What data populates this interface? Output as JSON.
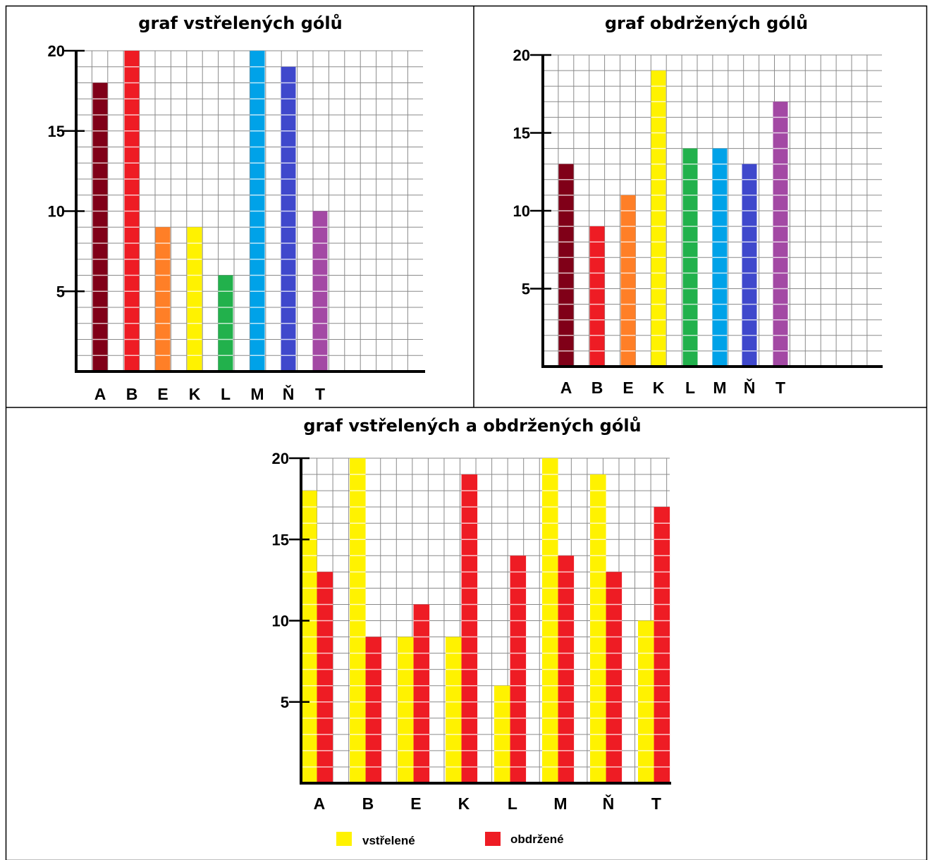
{
  "chart_data": [
    {
      "type": "bar",
      "title": "graf vstřelených gólů",
      "categories": [
        "A",
        "B",
        "E",
        "K",
        "L",
        "M",
        "Ň",
        "T"
      ],
      "values": [
        18,
        20,
        9,
        9,
        6,
        20,
        19,
        10
      ],
      "bar_colors": [
        "#800018",
        "#ee1c24",
        "#ff7f27",
        "#fff200",
        "#22b14c",
        "#00a2e8",
        "#3f48cc",
        "#a349a4"
      ],
      "yticks": [
        5,
        10,
        15,
        20
      ],
      "ylim": [
        0,
        20
      ],
      "grid": true
    },
    {
      "type": "bar",
      "title": "graf obdržených gólů",
      "categories": [
        "A",
        "B",
        "E",
        "K",
        "L",
        "M",
        "Ň",
        "T"
      ],
      "values": [
        13,
        9,
        11,
        19,
        14,
        14,
        13,
        17
      ],
      "bar_colors": [
        "#800018",
        "#ee1c24",
        "#ff7f27",
        "#fff200",
        "#22b14c",
        "#00a2e8",
        "#3f48cc",
        "#a349a4"
      ],
      "yticks": [
        5,
        10,
        15,
        20
      ],
      "ylim": [
        0,
        20
      ],
      "grid": true
    },
    {
      "type": "bar",
      "title": "graf vstřelených a obdržených gólů",
      "categories": [
        "A",
        "B",
        "E",
        "K",
        "L",
        "M",
        "Ň",
        "T"
      ],
      "series": [
        {
          "name": "vstřelené",
          "color": "#fff200",
          "values": [
            18,
            20,
            9,
            9,
            6,
            20,
            19,
            10
          ]
        },
        {
          "name": "obdržené",
          "color": "#ee1c24",
          "values": [
            13,
            9,
            11,
            19,
            14,
            14,
            13,
            17
          ]
        }
      ],
      "yticks": [
        5,
        10,
        15,
        20
      ],
      "ylim": [
        0,
        20
      ],
      "grid": true,
      "legend": "bottom"
    }
  ]
}
